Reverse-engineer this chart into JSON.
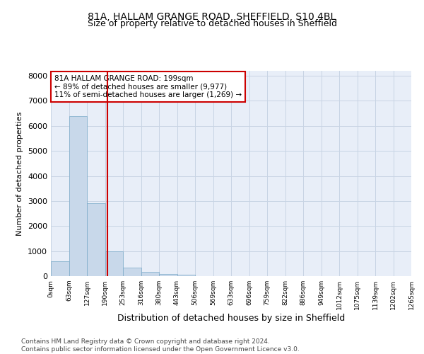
{
  "title": "81A, HALLAM GRANGE ROAD, SHEFFIELD, S10 4BL",
  "subtitle": "Size of property relative to detached houses in Sheffield",
  "xlabel": "Distribution of detached houses by size in Sheffield",
  "ylabel": "Number of detached properties",
  "footnote": "Contains HM Land Registry data © Crown copyright and database right 2024.\nContains public sector information licensed under the Open Government Licence v3.0.",
  "bar_values": [
    580,
    6380,
    2900,
    980,
    350,
    160,
    90,
    65,
    0,
    0,
    0,
    0,
    0,
    0,
    0,
    0,
    0,
    0,
    0,
    0
  ],
  "bar_labels": [
    "0sqm",
    "63sqm",
    "127sqm",
    "190sqm",
    "253sqm",
    "316sqm",
    "380sqm",
    "443sqm",
    "506sqm",
    "569sqm",
    "633sqm",
    "696sqm",
    "759sqm",
    "822sqm",
    "886sqm",
    "949sqm",
    "1012sqm",
    "1075sqm",
    "1139sqm",
    "1202sqm",
    "1265sqm"
  ],
  "bar_color": "#c8d8ea",
  "bar_edge_color": "#7aaac8",
  "vline_color": "#cc0000",
  "annotation_text": "81A HALLAM GRANGE ROAD: 199sqm\n← 89% of detached houses are smaller (9,977)\n11% of semi-detached houses are larger (1,269) →",
  "annotation_box_color": "#cc0000",
  "ylim": [
    0,
    8200
  ],
  "grid_color": "#c8d4e4",
  "bg_color": "#e8eef8",
  "title_fontsize": 10,
  "subtitle_fontsize": 9,
  "ylabel_fontsize": 8,
  "xlabel_fontsize": 9,
  "tick_fontsize": 6.5,
  "annotation_fontsize": 7.5,
  "footnote_fontsize": 6.5
}
